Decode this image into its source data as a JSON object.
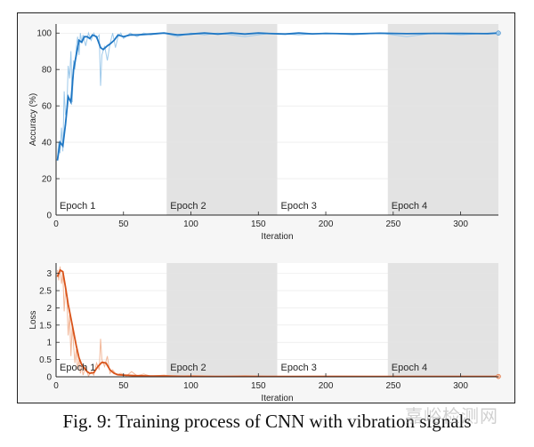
{
  "caption": "Fig. 9: Training process of CNN with vibration signals",
  "watermark": "嘉峪检测网",
  "colors": {
    "accuracy_line": "#1f77c4",
    "accuracy_raw": "#9ec9ea",
    "loss_line": "#d95319",
    "loss_raw": "#f2b89a",
    "epoch_shade": "#e3e3e3",
    "plot_bg": "#ffffff"
  },
  "chart_data": [
    {
      "type": "line",
      "ylabel": "Accuracy (%)",
      "xlabel": "Iteration",
      "xlim": [
        0,
        328
      ],
      "ylim": [
        0,
        105
      ],
      "xticks": [
        0,
        50,
        100,
        150,
        200,
        250,
        300
      ],
      "yticks": [
        0,
        20,
        40,
        60,
        80,
        100
      ],
      "epochs": [
        {
          "label": "Epoch 1",
          "start": 0,
          "end": 82,
          "shaded": false
        },
        {
          "label": "Epoch 2",
          "start": 82,
          "end": 164,
          "shaded": true
        },
        {
          "label": "Epoch 3",
          "start": 164,
          "end": 246,
          "shaded": false
        },
        {
          "label": "Epoch 4",
          "start": 246,
          "end": 328,
          "shaded": true
        }
      ],
      "series": [
        {
          "role": "smoothed",
          "x": [
            1,
            3,
            5,
            7,
            9,
            11,
            13,
            15,
            17,
            19,
            21,
            23,
            25,
            27,
            30,
            33,
            35,
            38,
            40,
            43,
            46,
            50,
            55,
            60,
            70,
            80,
            90,
            100,
            110,
            120,
            130,
            140,
            150,
            160,
            170,
            180,
            190,
            200,
            220,
            240,
            260,
            280,
            300,
            320,
            328
          ],
          "y": [
            30,
            40,
            38,
            50,
            65,
            62,
            80,
            88,
            96,
            95,
            98,
            98,
            97,
            99,
            98,
            92,
            91,
            93,
            94,
            96,
            99,
            98,
            99,
            99,
            99.5,
            100,
            99,
            99.5,
            100,
            99.5,
            100,
            99.5,
            100,
            99.7,
            99.5,
            100,
            99.6,
            99.8,
            99.6,
            99.9,
            99.7,
            99.8,
            99.8,
            99.7,
            100
          ]
        },
        {
          "role": "raw",
          "x": [
            1,
            2,
            3,
            4,
            5,
            6,
            7,
            8,
            9,
            10,
            11,
            12,
            13,
            14,
            15,
            16,
            17,
            18,
            19,
            20,
            22,
            24,
            26,
            28,
            30,
            32,
            33,
            34,
            36,
            38,
            40,
            42,
            44,
            46,
            48,
            50,
            55,
            60,
            65,
            70,
            80,
            90,
            100,
            110,
            120,
            140,
            160,
            180,
            200,
            220,
            240,
            260,
            280,
            300,
            320,
            328
          ],
          "y": [
            31,
            40,
            34,
            48,
            35,
            68,
            55,
            58,
            82,
            75,
            90,
            62,
            85,
            80,
            92,
            98,
            88,
            100,
            95,
            99,
            93,
            100,
            96,
            100,
            97,
            99,
            71,
            88,
            93,
            85,
            94,
            100,
            92,
            98,
            100,
            97,
            100,
            98,
            100,
            99,
            100,
            98,
            100,
            99,
            100,
            98,
            100,
            99,
            100,
            99,
            100,
            98,
            100,
            99,
            100,
            100
          ]
        }
      ]
    },
    {
      "type": "line",
      "ylabel": "Loss",
      "xlabel": "Iteration",
      "xlim": [
        0,
        328
      ],
      "ylim": [
        0,
        3.3
      ],
      "xticks": [
        0,
        50,
        100,
        150,
        200,
        250,
        300
      ],
      "yticks": [
        0,
        0.5,
        1,
        1.5,
        2,
        2.5,
        3
      ],
      "yticklabels": [
        "0",
        "0.5",
        "1",
        "1.5",
        "2",
        "2.5",
        "3"
      ],
      "epochs": [
        {
          "label": "Epoch 1",
          "start": 0,
          "end": 82,
          "shaded": false
        },
        {
          "label": "Epoch 2",
          "start": 82,
          "end": 164,
          "shaded": true
        },
        {
          "label": "Epoch 3",
          "start": 164,
          "end": 246,
          "shaded": false
        },
        {
          "label": "Epoch 4",
          "start": 246,
          "end": 328,
          "shaded": true
        }
      ],
      "series": [
        {
          "role": "smoothed",
          "x": [
            1,
            3,
            5,
            7,
            9,
            11,
            13,
            15,
            17,
            19,
            21,
            23,
            25,
            28,
            31,
            34,
            37,
            40,
            43,
            46,
            50,
            60,
            70,
            80,
            100,
            150,
            200,
            250,
            300,
            328
          ],
          "y": [
            2.9,
            3.1,
            3.05,
            2.6,
            2.1,
            1.7,
            1.3,
            0.9,
            0.55,
            0.35,
            0.25,
            0.15,
            0.1,
            0.12,
            0.3,
            0.42,
            0.4,
            0.2,
            0.1,
            0.06,
            0.05,
            0.03,
            0.02,
            0.02,
            0.01,
            0.01,
            0.01,
            0.01,
            0.01,
            0.01
          ]
        },
        {
          "role": "raw",
          "x": [
            1,
            2,
            3,
            4,
            5,
            6,
            7,
            8,
            9,
            10,
            11,
            12,
            13,
            14,
            15,
            16,
            17,
            18,
            19,
            20,
            22,
            24,
            26,
            28,
            30,
            32,
            33,
            34,
            36,
            38,
            40,
            42,
            45,
            48,
            52,
            56,
            60,
            65,
            70,
            80,
            90,
            100,
            120,
            140,
            160,
            200,
            250,
            300,
            328
          ],
          "y": [
            3.1,
            2.8,
            3.2,
            2.7,
            3.0,
            1.9,
            2.5,
            2.3,
            1.2,
            1.8,
            0.6,
            1.5,
            0.9,
            0.4,
            0.8,
            0.2,
            0.5,
            0.1,
            0.3,
            0.05,
            0.3,
            0.02,
            0.15,
            0.05,
            0.4,
            0.2,
            1.1,
            0.5,
            0.3,
            0.6,
            0.1,
            0.2,
            0.05,
            0.1,
            0.02,
            0.15,
            0.03,
            0.08,
            0.02,
            0.05,
            0.01,
            0.04,
            0.01,
            0.03,
            0.01,
            0.02,
            0.01,
            0.01,
            0.01
          ]
        }
      ]
    }
  ]
}
